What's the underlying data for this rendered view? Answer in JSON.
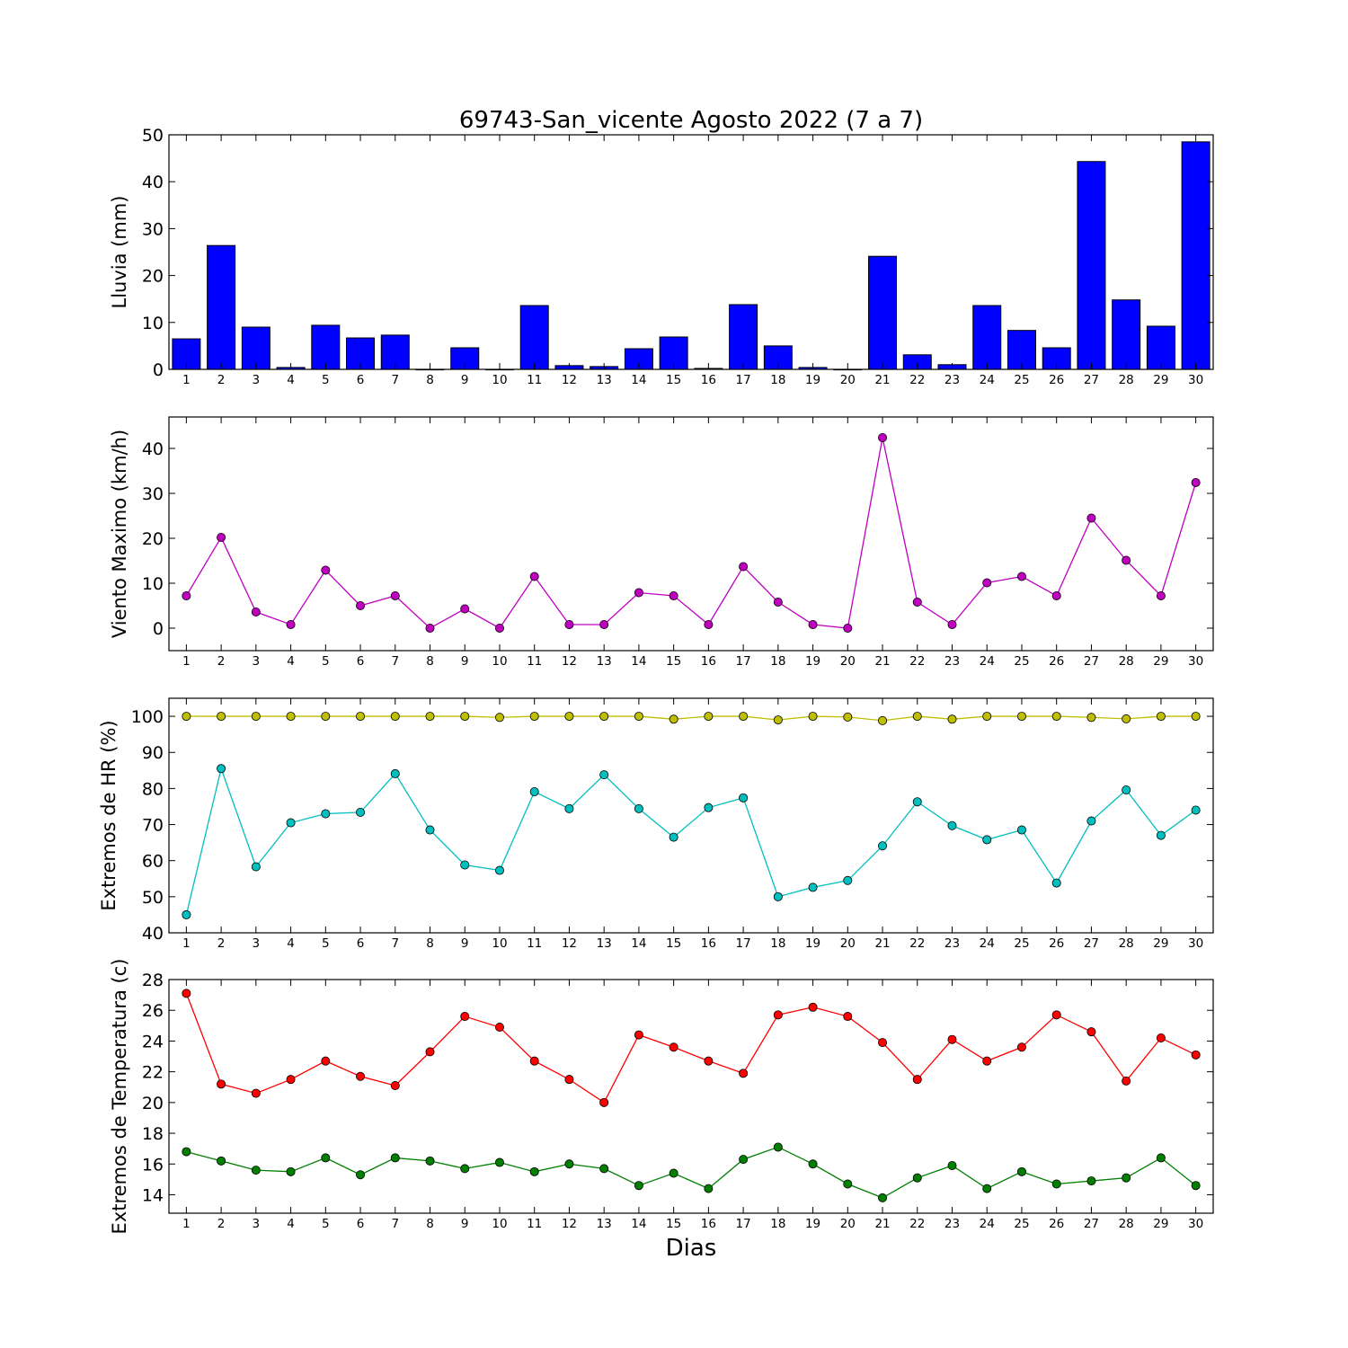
{
  "title": "69743-San_vicente Agosto 2022  (7 a 7)",
  "xlabel": "Dias",
  "chart_data": [
    {
      "type": "bar",
      "ylabel": "Lluvia (mm)",
      "x": [
        1,
        2,
        3,
        4,
        5,
        6,
        7,
        8,
        9,
        10,
        11,
        12,
        13,
        14,
        15,
        16,
        17,
        18,
        19,
        20,
        21,
        22,
        23,
        24,
        25,
        26,
        27,
        28,
        29,
        30
      ],
      "ylim": [
        0,
        50
      ],
      "yticks": [
        0,
        10,
        20,
        30,
        40,
        50
      ],
      "series": [
        {
          "color": "#0000ff",
          "values": [
            6.5,
            26.4,
            9.0,
            0.4,
            9.4,
            6.7,
            7.3,
            0.0,
            4.6,
            0.0,
            13.6,
            0.8,
            0.6,
            4.4,
            6.9,
            0.2,
            13.8,
            5.0,
            0.4,
            0.0,
            24.1,
            3.1,
            1.0,
            13.6,
            8.3,
            4.6,
            44.3,
            14.8,
            9.2,
            48.5
          ]
        }
      ]
    },
    {
      "type": "line",
      "ylabel": "Viento Maximo (km/h)",
      "x": [
        1,
        2,
        3,
        4,
        5,
        6,
        7,
        8,
        9,
        10,
        11,
        12,
        13,
        14,
        15,
        16,
        17,
        18,
        19,
        20,
        21,
        22,
        23,
        24,
        25,
        26,
        27,
        28,
        29,
        30
      ],
      "ylim": [
        -5,
        47
      ],
      "yticks": [
        0,
        10,
        20,
        30,
        40
      ],
      "series": [
        {
          "color": "#bf00bf",
          "values": [
            7.2,
            20.2,
            3.6,
            0.8,
            12.9,
            5.0,
            7.2,
            0.0,
            4.3,
            0.0,
            11.5,
            0.8,
            0.8,
            7.9,
            7.2,
            0.8,
            13.7,
            5.8,
            0.8,
            0.0,
            42.4,
            5.8,
            0.8,
            10.1,
            11.5,
            7.2,
            24.5,
            15.1,
            7.2,
            32.4
          ]
        }
      ]
    },
    {
      "type": "line",
      "ylabel": "Extremos de HR (%)",
      "x": [
        1,
        2,
        3,
        4,
        5,
        6,
        7,
        8,
        9,
        10,
        11,
        12,
        13,
        14,
        15,
        16,
        17,
        18,
        19,
        20,
        21,
        22,
        23,
        24,
        25,
        26,
        27,
        28,
        29,
        30
      ],
      "ylim": [
        40,
        105
      ],
      "yticks": [
        40,
        50,
        60,
        70,
        80,
        90,
        100
      ],
      "series": [
        {
          "color": "#bfbf00",
          "values": [
            100,
            100,
            100,
            100,
            100,
            100,
            100,
            100,
            100,
            99.7,
            100,
            100,
            100,
            100,
            99.2,
            100,
            100,
            99.0,
            100,
            99.8,
            98.8,
            100,
            99.2,
            100,
            100,
            100,
            99.7,
            99.3,
            100,
            100
          ]
        },
        {
          "color": "#00bfbf",
          "values": [
            45,
            85.5,
            58.3,
            70.5,
            73.0,
            73.4,
            84.1,
            68.5,
            58.8,
            57.3,
            79.1,
            74.4,
            83.8,
            74.4,
            66.5,
            74.7,
            77.4,
            50.0,
            52.6,
            54.5,
            64.1,
            76.3,
            69.7,
            65.8,
            68.5,
            53.8,
            71.0,
            79.6,
            67.0,
            74.0
          ]
        }
      ]
    },
    {
      "type": "line",
      "ylabel": "Extremos de Temperatura (c)",
      "x": [
        1,
        2,
        3,
        4,
        5,
        6,
        7,
        8,
        9,
        10,
        11,
        12,
        13,
        14,
        15,
        16,
        17,
        18,
        19,
        20,
        21,
        22,
        23,
        24,
        25,
        26,
        27,
        28,
        29,
        30
      ],
      "ylim": [
        12.8,
        28
      ],
      "yticks": [
        14,
        16,
        18,
        20,
        22,
        24,
        26,
        28
      ],
      "series": [
        {
          "color": "#ff0000",
          "values": [
            27.1,
            21.2,
            20.6,
            21.5,
            22.7,
            21.7,
            21.1,
            23.3,
            25.6,
            24.9,
            22.7,
            21.5,
            20.0,
            24.4,
            23.6,
            22.7,
            21.9,
            25.7,
            26.2,
            25.6,
            23.9,
            21.5,
            24.1,
            22.7,
            23.6,
            25.7,
            24.6,
            21.4,
            24.2,
            23.1
          ]
        },
        {
          "color": "#007f00",
          "values": [
            16.8,
            16.2,
            15.6,
            15.5,
            16.4,
            15.3,
            16.4,
            16.2,
            15.7,
            16.1,
            15.5,
            16.0,
            15.7,
            14.6,
            15.4,
            14.4,
            16.3,
            17.1,
            16.0,
            14.7,
            13.8,
            15.1,
            15.9,
            14.4,
            15.5,
            14.7,
            14.9,
            15.1,
            16.4,
            14.6
          ]
        }
      ]
    }
  ]
}
